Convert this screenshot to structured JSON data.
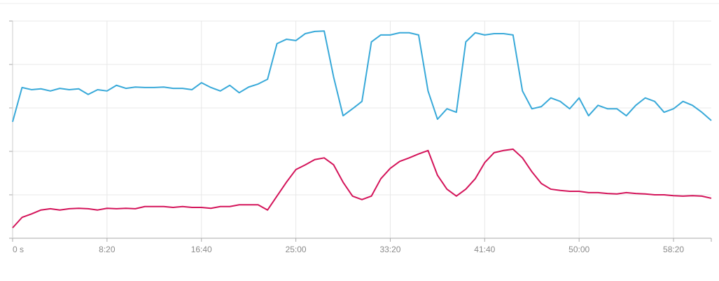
{
  "chart_data": {
    "type": "line",
    "x": [
      0,
      50,
      100,
      150,
      200,
      250,
      300,
      350,
      400,
      450,
      500,
      550,
      600,
      650,
      700,
      750,
      800,
      850,
      900,
      950,
      1000,
      1050,
      1100,
      1150,
      1200,
      1250,
      1300,
      1350,
      1400,
      1450,
      1500,
      1550,
      1600,
      1650,
      1700,
      1750,
      1800,
      1850,
      1900,
      1950,
      2000,
      2050,
      2100,
      2150,
      2200,
      2250,
      2300,
      2350,
      2400,
      2450,
      2500,
      2550,
      2600,
      2650,
      2700,
      2750,
      2800,
      2850,
      2900,
      2950,
      3000,
      3050,
      3100,
      3150,
      3200,
      3250,
      3300,
      3350,
      3400,
      3450,
      3500,
      3550,
      3600,
      3650,
      3700
    ],
    "series": [
      {
        "color": "#38a9d9",
        "values": [
          2.68,
          3.47,
          3.42,
          3.44,
          3.39,
          3.45,
          3.42,
          3.44,
          3.31,
          3.42,
          3.39,
          3.52,
          3.45,
          3.48,
          3.47,
          3.47,
          3.48,
          3.45,
          3.45,
          3.42,
          3.58,
          3.47,
          3.39,
          3.52,
          3.35,
          3.48,
          3.55,
          3.66,
          4.48,
          4.58,
          4.55,
          4.71,
          4.76,
          4.77,
          3.71,
          2.82,
          2.98,
          3.15,
          4.52,
          4.68,
          4.68,
          4.73,
          4.73,
          4.68,
          3.39,
          2.74,
          2.98,
          2.9,
          4.52,
          4.73,
          4.68,
          4.71,
          4.71,
          4.68,
          3.39,
          2.98,
          3.03,
          3.23,
          3.15,
          2.98,
          3.23,
          2.82,
          3.06,
          2.98,
          2.98,
          2.82,
          3.06,
          3.23,
          3.15,
          2.9,
          2.98,
          3.15,
          3.06,
          2.9,
          2.71
        ]
      },
      {
        "color": "#d4145a",
        "values": [
          0.24,
          0.48,
          0.56,
          0.65,
          0.68,
          0.65,
          0.68,
          0.69,
          0.68,
          0.65,
          0.69,
          0.68,
          0.69,
          0.68,
          0.73,
          0.73,
          0.73,
          0.71,
          0.73,
          0.71,
          0.71,
          0.69,
          0.73,
          0.73,
          0.77,
          0.77,
          0.77,
          0.65,
          0.97,
          1.29,
          1.58,
          1.69,
          1.81,
          1.85,
          1.69,
          1.29,
          0.97,
          0.89,
          0.97,
          1.37,
          1.61,
          1.77,
          1.85,
          1.94,
          2.02,
          1.45,
          1.13,
          0.97,
          1.13,
          1.37,
          1.74,
          1.97,
          2.02,
          2.05,
          1.85,
          1.53,
          1.26,
          1.13,
          1.1,
          1.08,
          1.08,
          1.05,
          1.05,
          1.03,
          1.02,
          1.05,
          1.03,
          1.02,
          1.0,
          1.0,
          0.98,
          0.97,
          0.98,
          0.97,
          0.92
        ]
      }
    ],
    "xlim": [
      0,
      3700
    ],
    "xticks": [
      {
        "value": 0,
        "label": "0 s"
      },
      {
        "value": 500,
        "label": "8:20"
      },
      {
        "value": 1000,
        "label": "16:40"
      },
      {
        "value": 1500,
        "label": "25:00"
      },
      {
        "value": 2000,
        "label": "33:20"
      },
      {
        "value": 2500,
        "label": "41:40"
      },
      {
        "value": 3000,
        "label": "50:00"
      },
      {
        "value": 3500,
        "label": "58:20"
      }
    ],
    "ylim": [
      0,
      5
    ],
    "yticks": [
      0,
      1,
      2,
      3,
      4,
      5
    ],
    "grid": true
  }
}
